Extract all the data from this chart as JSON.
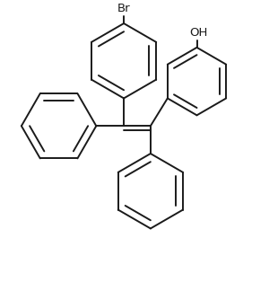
{
  "bg_color": "#ffffff",
  "line_color": "#1a1a1a",
  "line_width": 1.4,
  "fig_width": 3.0,
  "fig_height": 3.14,
  "dpi": 100,
  "br_label": "Br",
  "oh_label": "OH",
  "label_fontsize": 9.5
}
